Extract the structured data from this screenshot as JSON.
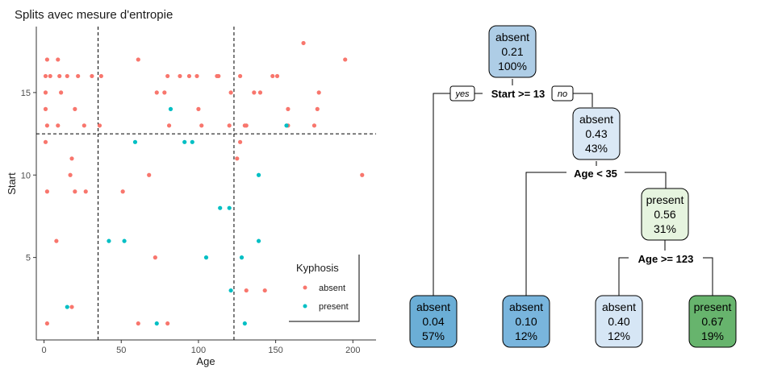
{
  "chart_data": [
    {
      "type": "scatter",
      "title": "Splits avec mesure d'entropie",
      "xlabel": "Age",
      "ylabel": "Start",
      "xlim": [
        -5,
        215
      ],
      "ylim": [
        0,
        19
      ],
      "xticks": [
        0,
        50,
        100,
        150,
        200
      ],
      "yticks": [
        5,
        10,
        15
      ],
      "xtick_labels": [
        "0",
        "50",
        "100",
        "150",
        "200"
      ],
      "ytick_labels": [
        "5",
        "10",
        "15"
      ],
      "grid": false,
      "legend": {
        "title": "Kyphosis",
        "placement": "bottom-right"
      },
      "vlines": [
        35,
        123
      ],
      "hlines": [
        12.5
      ],
      "series": [
        {
          "name": "absent",
          "color": "#F8766D",
          "points": [
            [
              2,
              17
            ],
            [
              9,
              17
            ],
            [
              1,
              16
            ],
            [
              4,
              16
            ],
            [
              10,
              16
            ],
            [
              15,
              16
            ],
            [
              22,
              16
            ],
            [
              31,
              16
            ],
            [
              37,
              16
            ],
            [
              61,
              17
            ],
            [
              80,
              16
            ],
            [
              88,
              16
            ],
            [
              94,
              16
            ],
            [
              99,
              16
            ],
            [
              112,
              16
            ],
            [
              113,
              16
            ],
            [
              127,
              16
            ],
            [
              148,
              16
            ],
            [
              151,
              16
            ],
            [
              168,
              18
            ],
            [
              195,
              17
            ],
            [
              1,
              15
            ],
            [
              11,
              15
            ],
            [
              73,
              15
            ],
            [
              78,
              15
            ],
            [
              121,
              15
            ],
            [
              136,
              15
            ],
            [
              140,
              15
            ],
            [
              178,
              15
            ],
            [
              1,
              14
            ],
            [
              20,
              14
            ],
            [
              100,
              14
            ],
            [
              158,
              14
            ],
            [
              177,
              14
            ],
            [
              2,
              13
            ],
            [
              9,
              13
            ],
            [
              26,
              13
            ],
            [
              36,
              13
            ],
            [
              81,
              13
            ],
            [
              102,
              13
            ],
            [
              120,
              13
            ],
            [
              130,
              13
            ],
            [
              131,
              13
            ],
            [
              158,
              13
            ],
            [
              175,
              13
            ],
            [
              1,
              12
            ],
            [
              127,
              12
            ],
            [
              18,
              11
            ],
            [
              125,
              11
            ],
            [
              17,
              10
            ],
            [
              68,
              10
            ],
            [
              206,
              10
            ],
            [
              2,
              9
            ],
            [
              20,
              9
            ],
            [
              27,
              9
            ],
            [
              51,
              9
            ],
            [
              8,
              6
            ],
            [
              72,
              5
            ],
            [
              143,
              3
            ],
            [
              131,
              3
            ],
            [
              18,
              2
            ],
            [
              2,
              1
            ],
            [
              61,
              1
            ],
            [
              80,
              1
            ]
          ]
        },
        {
          "name": "present",
          "color": "#00BFC4",
          "points": [
            [
              82,
              14
            ],
            [
              157,
              13
            ],
            [
              59,
              12
            ],
            [
              91,
              12
            ],
            [
              96,
              12
            ],
            [
              139,
              10
            ],
            [
              114,
              8
            ],
            [
              120,
              8
            ],
            [
              42,
              6
            ],
            [
              52,
              6
            ],
            [
              139,
              6
            ],
            [
              105,
              5
            ],
            [
              128,
              5
            ],
            [
              121,
              3
            ],
            [
              15,
              2
            ],
            [
              73,
              1
            ],
            [
              130,
              1
            ]
          ]
        }
      ]
    },
    {
      "type": "tree",
      "nodes": {
        "root": {
          "label": "absent",
          "value": "0.21",
          "pct": "100%",
          "color": "#aecde6"
        },
        "n2": {
          "label": "absent",
          "value": "0.43",
          "pct": "43%",
          "color": "#dae8f5"
        },
        "n3": {
          "label": "present",
          "value": "0.56",
          "pct": "31%",
          "color": "#e6f4df"
        },
        "leaf1": {
          "label": "absent",
          "value": "0.04",
          "pct": "57%",
          "color": "#6baed6"
        },
        "leaf2": {
          "label": "absent",
          "value": "0.10",
          "pct": "12%",
          "color": "#79b5dd"
        },
        "leaf3": {
          "label": "absent",
          "value": "0.40",
          "pct": "12%",
          "color": "#d6e6f5"
        },
        "leaf4": {
          "label": "present",
          "value": "0.67",
          "pct": "19%",
          "color": "#67b46d"
        }
      },
      "splits": {
        "s1": "Start >= 13",
        "s2": "Age < 35",
        "s3": "Age >= 123"
      },
      "branch_labels": {
        "yes": "yes",
        "no": "no"
      }
    }
  ]
}
